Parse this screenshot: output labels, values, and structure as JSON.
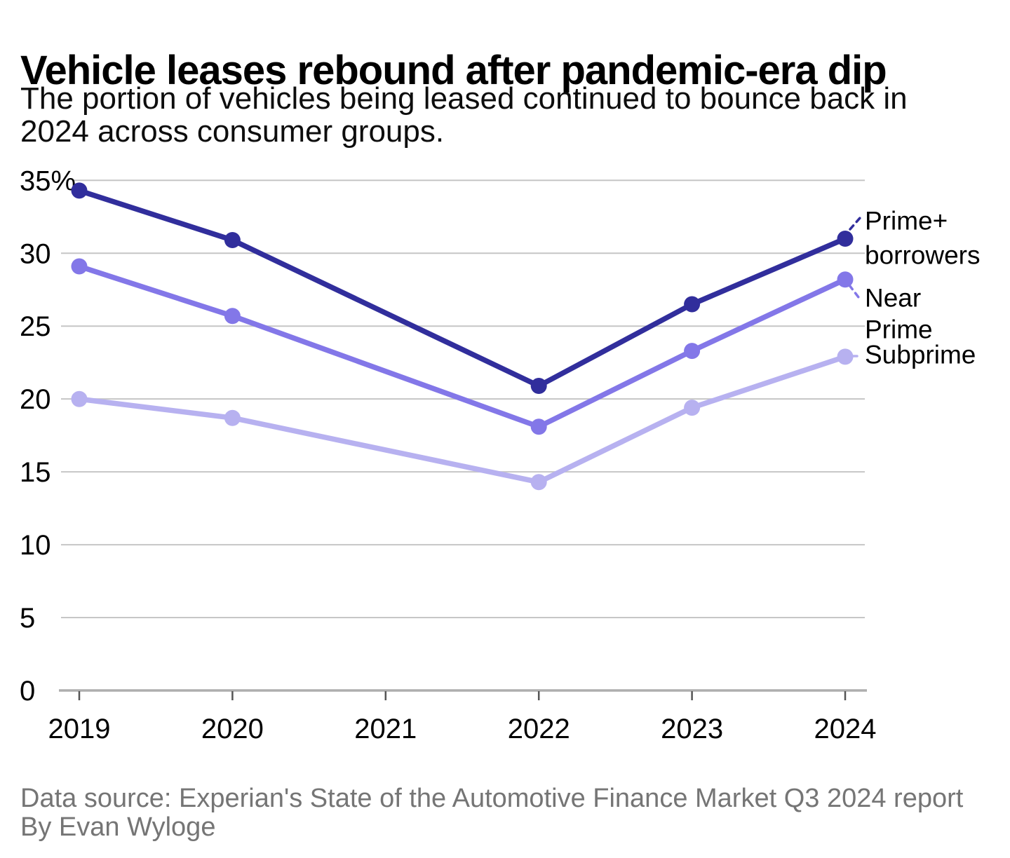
{
  "title": "Vehicle leases rebound after pandemic-era dip",
  "subtitle": {
    "line1": "The portion of vehicles being leased continued to bounce back in",
    "line2": "2024 across consumer groups."
  },
  "footer": {
    "source": "Data source: Experian's State of the Automotive Finance Market Q3 2024 report",
    "byline": "By Evan Wyloge"
  },
  "colors": {
    "text": "#000000",
    "gridline": "#c6c6c6",
    "axis": "#aeaeae",
    "tick": "#555555",
    "footer_text": "#757575"
  },
  "chart_data": {
    "type": "line",
    "x": [
      2019,
      2020,
      2021,
      2022,
      2023,
      2024
    ],
    "x_tick_labels": [
      "2019",
      "2020",
      "2021",
      "2022",
      "2023",
      "2024"
    ],
    "y_ticks": [
      {
        "value": 35,
        "label": "35%"
      },
      {
        "value": 30,
        "label": "30"
      },
      {
        "value": 25,
        "label": "25"
      },
      {
        "value": 20,
        "label": "20"
      },
      {
        "value": 15,
        "label": "15"
      },
      {
        "value": 10,
        "label": "10"
      },
      {
        "value": 5,
        "label": "5"
      },
      {
        "value": 0,
        "label": "0"
      }
    ],
    "ylim": [
      0,
      35
    ],
    "grid": "horizontal",
    "legend_position": "right-annotations",
    "series": [
      {
        "name": "Prime+ borrowers",
        "label_lines": [
          "Prime+",
          "borrowers"
        ],
        "color": "#312e9c",
        "x": [
          2019,
          2020,
          2022,
          2023,
          2024
        ],
        "values": [
          34.3,
          30.9,
          20.9,
          26.5,
          31.0
        ]
      },
      {
        "name": "Near Prime",
        "label_lines": [
          "Near",
          "Prime"
        ],
        "color": "#8377e8",
        "x": [
          2019,
          2020,
          2022,
          2023,
          2024
        ],
        "values": [
          29.1,
          25.7,
          18.1,
          23.3,
          28.2
        ]
      },
      {
        "name": "Subprime",
        "label_lines": [
          "Subprime"
        ],
        "color": "#b7b1f0",
        "x": [
          2019,
          2020,
          2022,
          2023,
          2024
        ],
        "values": [
          20.0,
          18.7,
          14.3,
          19.4,
          22.9
        ]
      }
    ]
  }
}
